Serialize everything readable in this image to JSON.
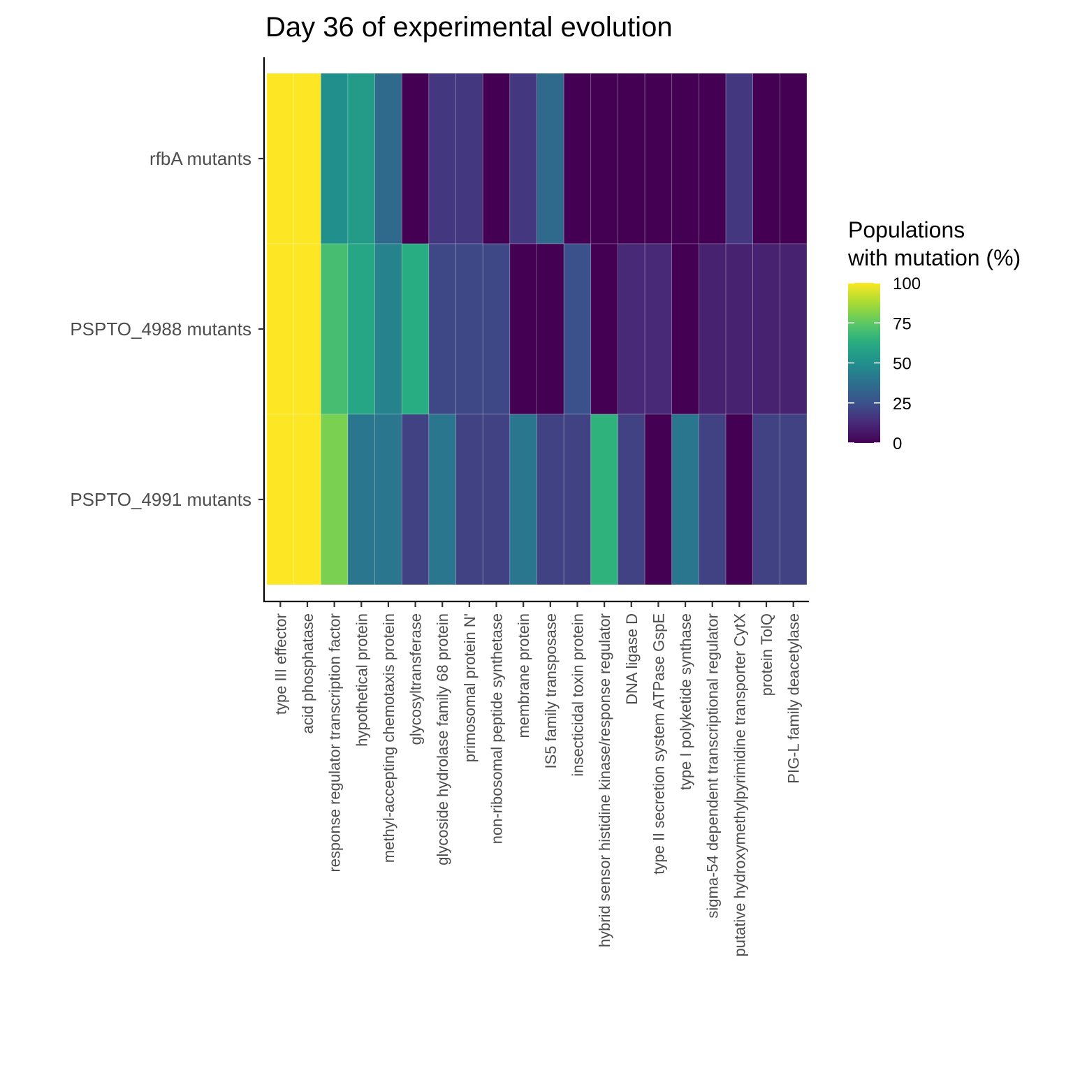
{
  "chart_data": {
    "type": "heatmap",
    "title": "Day 36 of experimental evolution",
    "xlabel": "",
    "ylabel": "",
    "x_categories": [
      "type III effector",
      "acid phosphatase",
      "response regulator transcription factor",
      "hypothetical protein",
      "methyl-accepting chemotaxis protein",
      "glycosyltransferase",
      "glycoside hydrolase family 68 protein",
      "primosomal protein N'",
      "non-ribosomal peptide synthetase",
      "membrane protein",
      "IS5 family transposase",
      "insecticidal toxin protein",
      "hybrid sensor histidine kinase/response regulator",
      "DNA ligase D",
      "type II secretion system ATPase GspE",
      "type I polyketide synthase",
      "sigma-54 dependent transcriptional regulator",
      "putative hydroxymethylpyrimidine transporter CytX",
      "protein TolQ",
      "PIG-L family deacetylase"
    ],
    "y_categories": [
      "rfbA mutants",
      "PSPTO_4988 mutants",
      "PSPTO_4991 mutants"
    ],
    "values": [
      [
        100,
        100,
        50,
        55,
        35,
        0,
        17,
        17,
        0,
        17,
        35,
        0,
        0,
        0,
        0,
        0,
        0,
        17,
        0,
        0
      ],
      [
        100,
        100,
        70,
        60,
        45,
        63,
        22,
        22,
        22,
        0,
        0,
        25,
        0,
        12,
        12,
        0,
        10,
        10,
        10,
        10
      ],
      [
        100,
        100,
        80,
        40,
        40,
        20,
        40,
        20,
        20,
        40,
        20,
        20,
        65,
        20,
        0,
        40,
        20,
        0,
        20,
        20
      ]
    ],
    "colorbar": {
      "title": "Populations\nwith mutation (%)",
      "range": [
        0,
        100
      ],
      "ticks": [
        100,
        75,
        50,
        25,
        0
      ],
      "palette": "viridis"
    },
    "grid": false,
    "legend_position": "right"
  }
}
